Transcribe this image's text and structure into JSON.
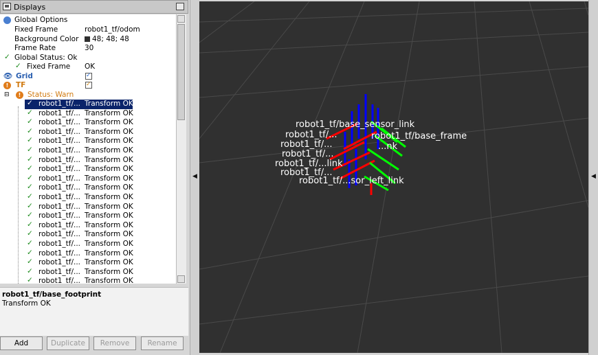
{
  "panel": {
    "title": "Displays"
  },
  "tree": {
    "global_options": "Global Options",
    "fixed_frame_label": "Fixed Frame",
    "fixed_frame_value": "robot1_tf/odom",
    "bg_label": "Background Color",
    "bg_value": "48; 48; 48",
    "frame_rate_label": "Frame Rate",
    "frame_rate_value": "30",
    "global_status": "Global Status: Ok",
    "gs_fixed_frame": "Fixed Frame",
    "gs_fixed_value": "OK",
    "grid": "Grid",
    "tf": "TF",
    "status_warn": "Status: Warn",
    "frames": [
      {
        "name": "robot1_tf/...",
        "value": "Transform OK"
      },
      {
        "name": "robot1_tf/...",
        "value": "Transform OK"
      },
      {
        "name": "robot1_tf/...",
        "value": "Transform OK"
      },
      {
        "name": "robot1_tf/...",
        "value": "Transform OK"
      },
      {
        "name": "robot1_tf/...",
        "value": "Transform OK"
      },
      {
        "name": "robot1_tf/...",
        "value": "Transform OK"
      },
      {
        "name": "robot1_tf/...",
        "value": "Transform OK"
      },
      {
        "name": "robot1_tf/...",
        "value": "Transform OK"
      },
      {
        "name": "robot1_tf/...",
        "value": "Transform OK"
      },
      {
        "name": "robot1_tf/...",
        "value": "Transform OK"
      },
      {
        "name": "robot1_tf/...",
        "value": "Transform OK"
      },
      {
        "name": "robot1_tf/...",
        "value": "Transform OK"
      },
      {
        "name": "robot1_tf/...",
        "value": "Transform OK"
      },
      {
        "name": "robot1_tf/...",
        "value": "Transform OK"
      },
      {
        "name": "robot1_tf/...",
        "value": "Transform OK"
      },
      {
        "name": "robot1_tf/...",
        "value": "Transform OK"
      },
      {
        "name": "robot1_tf/...",
        "value": "Transform OK"
      },
      {
        "name": "robot1_tf/...",
        "value": "Transform OK"
      },
      {
        "name": "robot1_tf/...",
        "value": "Transform OK"
      },
      {
        "name": "robot1_tf/...",
        "value": "Transform OK"
      },
      {
        "name": "robot1_tf/...",
        "value": "Transform OK"
      }
    ]
  },
  "info": {
    "title": "robot1_tf/base_footprint",
    "status": "Transform OK"
  },
  "buttons": {
    "add": "Add",
    "duplicate": "Duplicate",
    "remove": "Remove",
    "rename": "Rename"
  },
  "viewport": {
    "labels": [
      "robot1_tf/base_sensor_link",
      "robot1_tf/...",
      "robot1_tf/base_frame",
      "robot1_tf/...link",
      "robot1_tf/...sor_left_link"
    ]
  },
  "colors": {
    "view_bg": "#303030",
    "selection": "#0a246a",
    "ok_check": "#1a8a1a",
    "warn": "#e07c1a"
  }
}
